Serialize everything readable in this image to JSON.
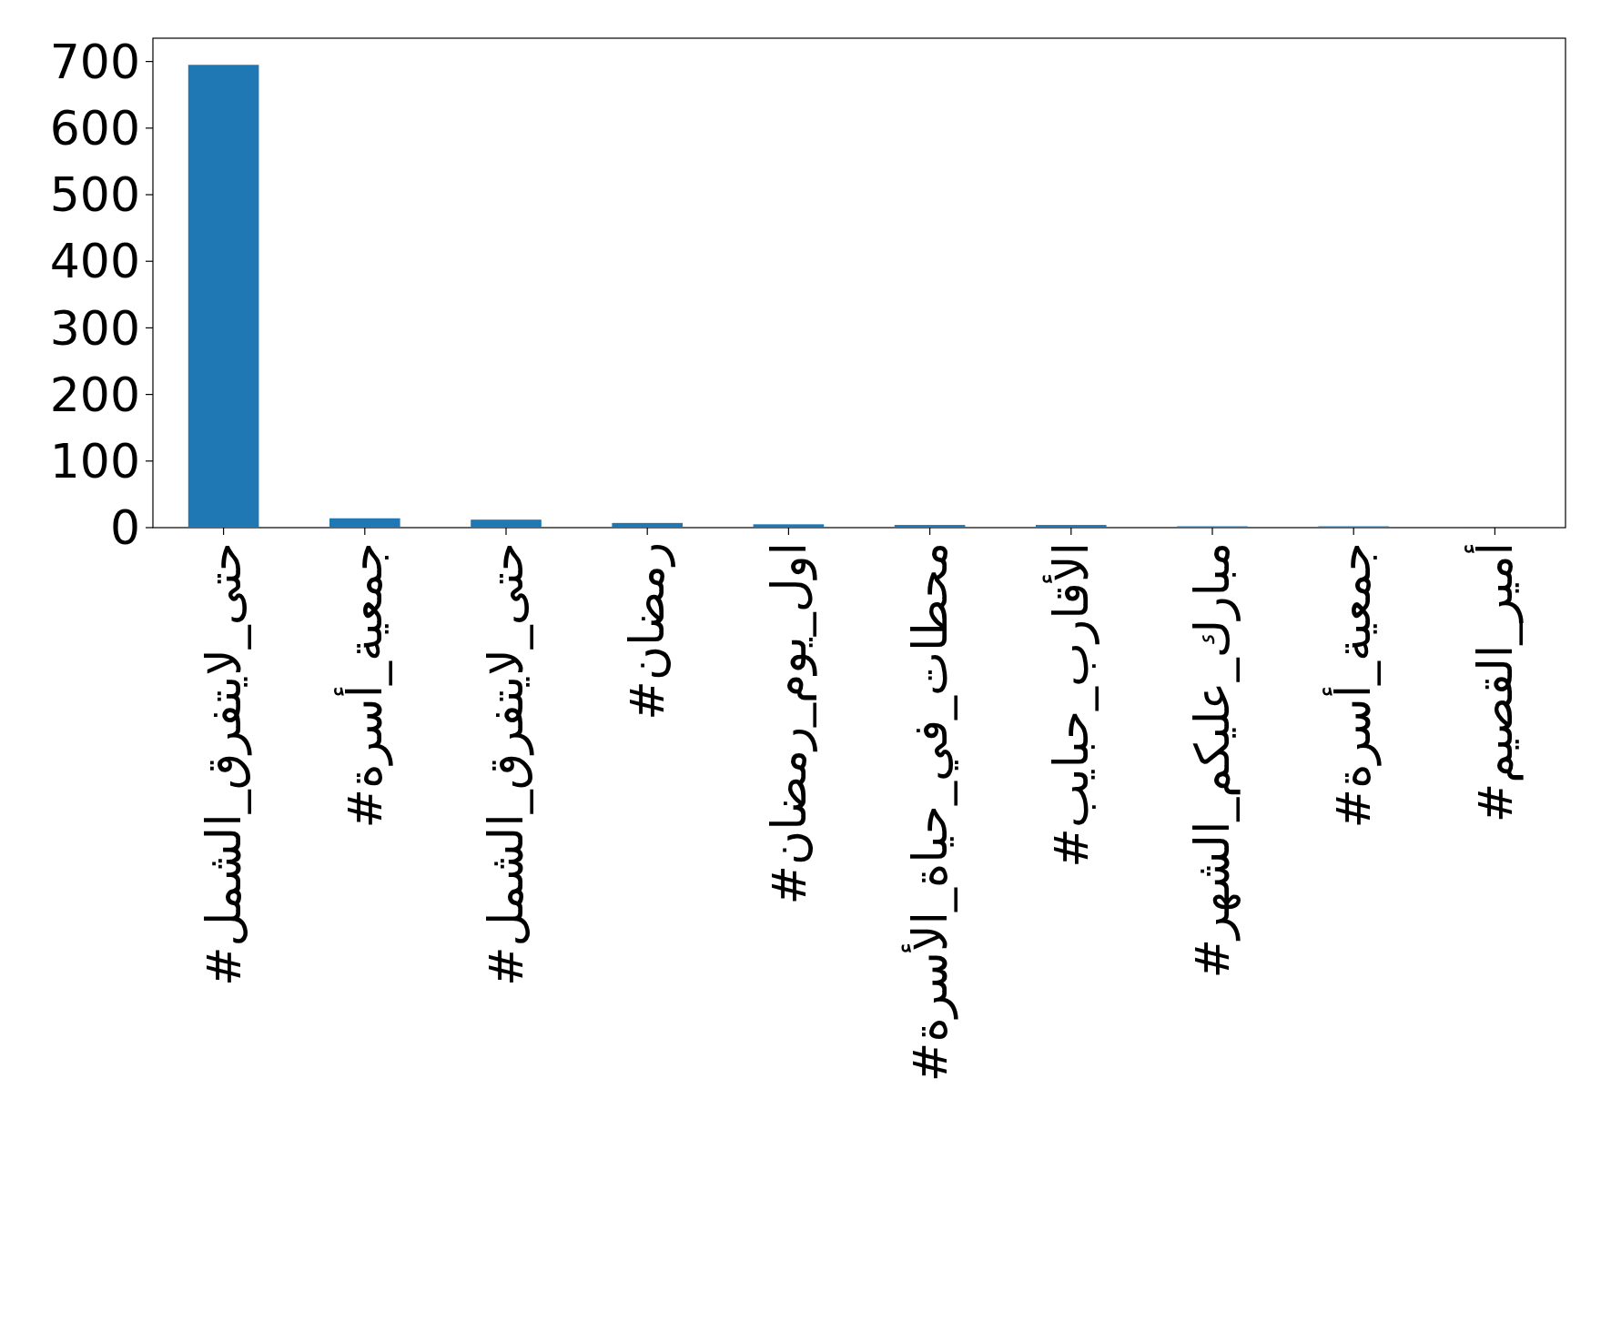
{
  "chart_data": {
    "type": "bar",
    "categories": [
      "#حتى_لايتفرق_الشمل",
      "#جمعية_أسرة",
      "#حتى_لايتفرق_الشمل",
      "#رمضان",
      "#اول_يوم_رمضان",
      "#محطات_في_حياة_الأسرة",
      "#الأقارب_حبايب",
      "#مبارك_عليكم_الشهر",
      "#جمعية_أسرة",
      "#أمير_القصيم"
    ],
    "values": [
      695,
      14,
      12,
      7,
      5,
      4,
      4,
      2,
      2,
      1
    ],
    "color": "#1f77b4",
    "ylim": [
      0,
      735
    ],
    "yticks": [
      0,
      100,
      200,
      300,
      400,
      500,
      600,
      700
    ],
    "grid": false
  }
}
